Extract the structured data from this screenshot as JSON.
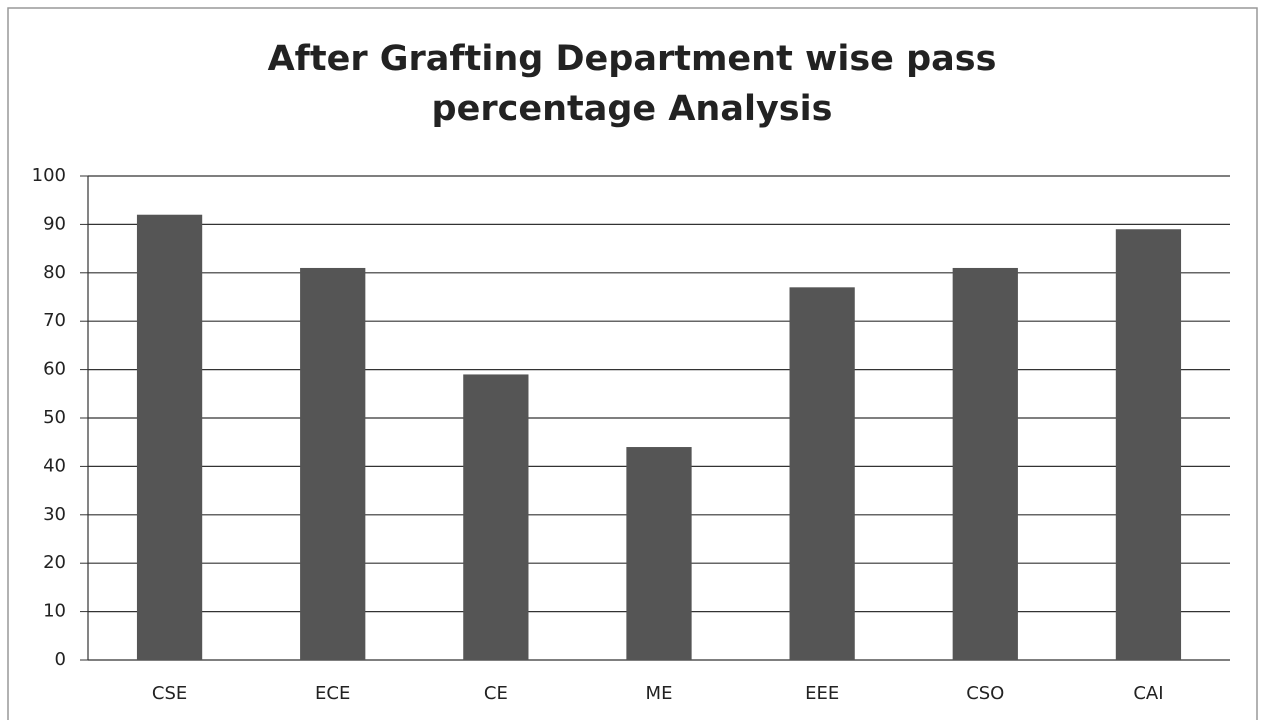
{
  "chart_data": {
    "type": "bar",
    "title": "After Grafting Department wise pass percentage Analysis",
    "categories": [
      "CSE",
      "ECE",
      "CE",
      "ME",
      "EEE",
      "CSO",
      "CAI"
    ],
    "values": [
      92,
      81,
      59,
      44,
      77,
      81,
      89
    ],
    "color": "#555555",
    "ylim": [
      0,
      100
    ],
    "yticks": [
      0,
      10,
      20,
      30,
      40,
      50,
      60,
      70,
      80,
      90,
      100
    ],
    "grid": true
  }
}
